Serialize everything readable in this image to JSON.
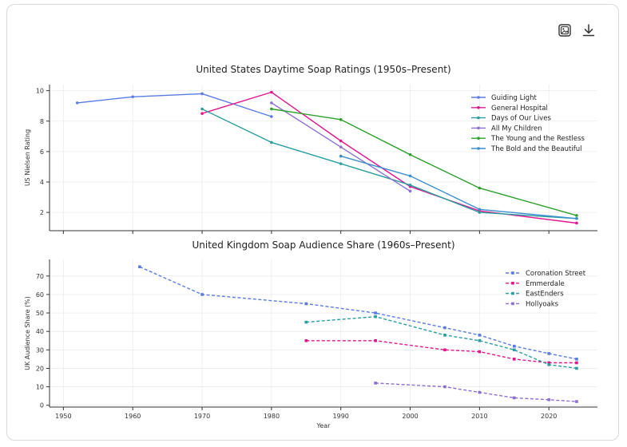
{
  "toolbar": {
    "image_icon": "image-icon",
    "download_icon": "download-icon"
  },
  "colors": {
    "guiding_light": "#5b7be0",
    "general_hospital": "#e0168f",
    "days_of_our_lives": "#2a9d9f",
    "all_my_children": "#8c6fd0",
    "young_and_restless": "#2ca02c",
    "bold_and_beautiful": "#3b8fd0"
  },
  "chart_data": [
    {
      "type": "line",
      "title": "United States Daytime Soap Ratings (1950s–Present)",
      "xlabel": "",
      "ylabel": "US Nielsen Rating",
      "xlim": [
        1948,
        2027
      ],
      "ylim": [
        0.8,
        10.4
      ],
      "xticks": [
        1950,
        1960,
        1970,
        1980,
        1990,
        2000,
        2010,
        2020
      ],
      "yticks": [
        2,
        4,
        6,
        8,
        10
      ],
      "yticklabels": [
        "2",
        "4",
        "6",
        "8",
        "10"
      ],
      "grid": true,
      "legend": "top-right",
      "series": [
        {
          "name": "Guiding Light",
          "color": "#5b7be0",
          "dash": false,
          "x": [
            1952,
            1960,
            1970,
            1980
          ],
          "y": [
            9.2,
            9.6,
            9.8,
            8.3
          ]
        },
        {
          "name": "General Hospital",
          "color": "#e0168f",
          "dash": false,
          "x": [
            1970,
            1980,
            1990,
            2000,
            2010,
            2024
          ],
          "y": [
            8.5,
            9.9,
            6.7,
            3.7,
            2.1,
            1.3
          ]
        },
        {
          "name": "Days of Our Lives",
          "color": "#2a9d9f",
          "dash": false,
          "x": [
            1970,
            1980,
            1990,
            2000,
            2010,
            2024
          ],
          "y": [
            8.8,
            6.6,
            5.2,
            3.8,
            2.0,
            1.6
          ]
        },
        {
          "name": "All My Children",
          "color": "#8c6fd0",
          "dash": false,
          "x": [
            1980,
            1990,
            2000
          ],
          "y": [
            9.2,
            6.3,
            3.4
          ]
        },
        {
          "name": "The Young and the Restless",
          "color": "#2ca02c",
          "dash": false,
          "x": [
            1980,
            1990,
            2000,
            2010,
            2024
          ],
          "y": [
            8.8,
            8.1,
            5.8,
            3.6,
            1.8
          ]
        },
        {
          "name": "The Bold and the Beautiful",
          "color": "#3b8fd0",
          "dash": false,
          "x": [
            1990,
            2000,
            2010,
            2024
          ],
          "y": [
            5.7,
            4.4,
            2.2,
            1.6
          ]
        }
      ]
    },
    {
      "type": "line",
      "title": "United Kingdom Soap Audience Share (1960s–Present)",
      "xlabel": "Year",
      "ylabel": "UK Audience Share (%)",
      "xlim": [
        1948,
        2027
      ],
      "ylim": [
        -1,
        79
      ],
      "xticks": [
        1950,
        1960,
        1970,
        1980,
        1990,
        2000,
        2010,
        2020
      ],
      "xticklabels": [
        "1950",
        "1960",
        "1970",
        "1980",
        "1990",
        "2000",
        "2010",
        "2020"
      ],
      "yticks": [
        0,
        10,
        20,
        30,
        40,
        50,
        60,
        70
      ],
      "yticklabels": [
        "0",
        "10",
        "20",
        "30",
        "40",
        "50",
        "60",
        "70"
      ],
      "grid": true,
      "legend": "top-right",
      "series": [
        {
          "name": "Coronation Street",
          "color": "#5b7be0",
          "dash": true,
          "x": [
            1961,
            1970,
            1985,
            1995,
            2005,
            2010,
            2015,
            2020,
            2024
          ],
          "y": [
            75,
            60,
            55,
            50,
            42,
            38,
            32,
            28,
            25
          ]
        },
        {
          "name": "Emmerdale",
          "color": "#e0168f",
          "dash": true,
          "x": [
            1985,
            1995,
            2005,
            2010,
            2015,
            2020,
            2024
          ],
          "y": [
            35,
            35,
            30,
            29,
            25,
            23,
            23
          ]
        },
        {
          "name": "EastEnders",
          "color": "#2a9d9f",
          "dash": true,
          "x": [
            1985,
            1995,
            2005,
            2010,
            2015,
            2020,
            2024
          ],
          "y": [
            45,
            48,
            38,
            35,
            30,
            22,
            20
          ]
        },
        {
          "name": "Hollyoaks",
          "color": "#8c6fd0",
          "dash": true,
          "x": [
            1995,
            2005,
            2010,
            2015,
            2020,
            2024
          ],
          "y": [
            12,
            10,
            7,
            4,
            3,
            2
          ]
        }
      ]
    }
  ]
}
